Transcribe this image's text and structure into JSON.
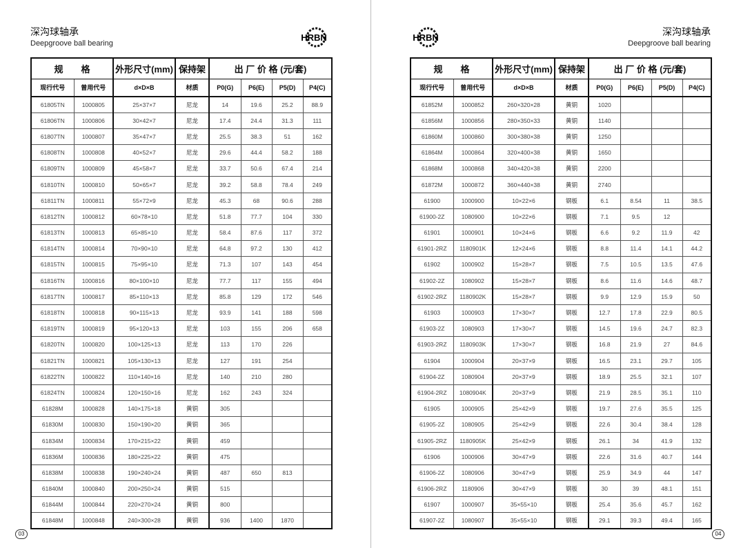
{
  "brand": "HRBN",
  "title_cn": "深沟球轴承",
  "title_en": "Deepgroove ball bearing",
  "header": {
    "spec": "规　　格",
    "dims": "外形尺寸(mm)",
    "cage": "保持架",
    "price": "出 厂 价 格 (元/套)",
    "code": "现行代号",
    "old_code": "曾用代号",
    "dxDxB": "d×D×B",
    "material": "材质",
    "p0": "P0(G)",
    "p6": "P6(E)",
    "p5": "P5(D)",
    "p4": "P4(C)"
  },
  "left": {
    "page_number": "03",
    "rows": [
      [
        "61805TN",
        "1000805",
        "25×37×7",
        "尼龙",
        "14",
        "19.6",
        "25.2",
        "88.9"
      ],
      [
        "61806TN",
        "1000806",
        "30×42×7",
        "尼龙",
        "17.4",
        "24.4",
        "31.3",
        "111"
      ],
      [
        "61807TN",
        "1000807",
        "35×47×7",
        "尼龙",
        "25.5",
        "38.3",
        "51",
        "162"
      ],
      [
        "61808TN",
        "1000808",
        "40×52×7",
        "尼龙",
        "29.6",
        "44.4",
        "58.2",
        "188"
      ],
      [
        "61809TN",
        "1000809",
        "45×58×7",
        "尼龙",
        "33.7",
        "50.6",
        "67.4",
        "214"
      ],
      [
        "61810TN",
        "1000810",
        "50×65×7",
        "尼龙",
        "39.2",
        "58.8",
        "78.4",
        "249"
      ],
      [
        "61811TN",
        "1000811",
        "55×72×9",
        "尼龙",
        "45.3",
        "68",
        "90.6",
        "288"
      ],
      [
        "61812TN",
        "1000812",
        "60×78×10",
        "尼龙",
        "51.8",
        "77.7",
        "104",
        "330"
      ],
      [
        "61813TN",
        "1000813",
        "65×85×10",
        "尼龙",
        "58.4",
        "87.6",
        "117",
        "372"
      ],
      [
        "61814TN",
        "1000814",
        "70×90×10",
        "尼龙",
        "64.8",
        "97.2",
        "130",
        "412"
      ],
      [
        "61815TN",
        "1000815",
        "75×95×10",
        "尼龙",
        "71.3",
        "107",
        "143",
        "454"
      ],
      [
        "61816TN",
        "1000816",
        "80×100×10",
        "尼龙",
        "77.7",
        "117",
        "155",
        "494"
      ],
      [
        "61817TN",
        "1000817",
        "85×110×13",
        "尼龙",
        "85.8",
        "129",
        "172",
        "546"
      ],
      [
        "61818TN",
        "1000818",
        "90×115×13",
        "尼龙",
        "93.9",
        "141",
        "188",
        "598"
      ],
      [
        "61819TN",
        "1000819",
        "95×120×13",
        "尼龙",
        "103",
        "155",
        "206",
        "658"
      ],
      [
        "61820TN",
        "1000820",
        "100×125×13",
        "尼龙",
        "113",
        "170",
        "226",
        ""
      ],
      [
        "61821TN",
        "1000821",
        "105×130×13",
        "尼龙",
        "127",
        "191",
        "254",
        ""
      ],
      [
        "61822TN",
        "1000822",
        "110×140×16",
        "尼龙",
        "140",
        "210",
        "280",
        ""
      ],
      [
        "61824TN",
        "1000824",
        "120×150×16",
        "尼龙",
        "162",
        "243",
        "324",
        ""
      ],
      [
        "61828M",
        "1000828",
        "140×175×18",
        "黄铜",
        "305",
        "",
        "",
        ""
      ],
      [
        "61830M",
        "1000830",
        "150×190×20",
        "黄铜",
        "365",
        "",
        "",
        ""
      ],
      [
        "61834M",
        "1000834",
        "170×215×22",
        "黄铜",
        "459",
        "",
        "",
        ""
      ],
      [
        "61836M",
        "1000836",
        "180×225×22",
        "黄铜",
        "475",
        "",
        "",
        ""
      ],
      [
        "61838M",
        "1000838",
        "190×240×24",
        "黄铜",
        "487",
        "650",
        "813",
        ""
      ],
      [
        "61840M",
        "1000840",
        "200×250×24",
        "黄铜",
        "515",
        "",
        "",
        ""
      ],
      [
        "61844M",
        "1000844",
        "220×270×24",
        "黄铜",
        "800",
        "",
        "",
        ""
      ],
      [
        "61848M",
        "1000848",
        "240×300×28",
        "黄铜",
        "936",
        "1400",
        "1870",
        ""
      ]
    ]
  },
  "right": {
    "page_number": "04",
    "rows": [
      [
        "61852M",
        "1000852",
        "260×320×28",
        "黄铜",
        "1020",
        "",
        "",
        ""
      ],
      [
        "61856M",
        "1000856",
        "280×350×33",
        "黄铜",
        "1140",
        "",
        "",
        ""
      ],
      [
        "61860M",
        "1000860",
        "300×380×38",
        "黄铜",
        "1250",
        "",
        "",
        ""
      ],
      [
        "61864M",
        "1000864",
        "320×400×38",
        "黄铜",
        "1650",
        "",
        "",
        ""
      ],
      [
        "61868M",
        "1000868",
        "340×420×38",
        "黄铜",
        "2200",
        "",
        "",
        ""
      ],
      [
        "61872M",
        "1000872",
        "360×440×38",
        "黄铜",
        "2740",
        "",
        "",
        ""
      ],
      [
        "61900",
        "1000900",
        "10×22×6",
        "钢板",
        "6.1",
        "8.54",
        "11",
        "38.5"
      ],
      [
        "61900-2Z",
        "1080900",
        "10×22×6",
        "钢板",
        "7.1",
        "9.5",
        "12",
        ""
      ],
      [
        "61901",
        "1000901",
        "10×24×6",
        "钢板",
        "6.6",
        "9.2",
        "11.9",
        "42"
      ],
      [
        "61901-2RZ",
        "1180901K",
        "12×24×6",
        "钢板",
        "8.8",
        "11.4",
        "14.1",
        "44.2"
      ],
      [
        "61902",
        "1000902",
        "15×28×7",
        "钢板",
        "7.5",
        "10.5",
        "13.5",
        "47.6"
      ],
      [
        "61902-2Z",
        "1080902",
        "15×28×7",
        "钢板",
        "8.6",
        "11.6",
        "14.6",
        "48.7"
      ],
      [
        "61902-2RZ",
        "1180902K",
        "15×28×7",
        "钢板",
        "9.9",
        "12.9",
        "15.9",
        "50"
      ],
      [
        "61903",
        "1000903",
        "17×30×7",
        "钢板",
        "12.7",
        "17.8",
        "22.9",
        "80.5"
      ],
      [
        "61903-2Z",
        "1080903",
        "17×30×7",
        "钢板",
        "14.5",
        "19.6",
        "24.7",
        "82.3"
      ],
      [
        "61903-2RZ",
        "1180903K",
        "17×30×7",
        "钢板",
        "16.8",
        "21.9",
        "27",
        "84.6"
      ],
      [
        "61904",
        "1000904",
        "20×37×9",
        "钢板",
        "16.5",
        "23.1",
        "29.7",
        "105"
      ],
      [
        "61904-2Z",
        "1080904",
        "20×37×9",
        "钢板",
        "18.9",
        "25.5",
        "32.1",
        "107"
      ],
      [
        "61904-2RZ",
        "1080904K",
        "20×37×9",
        "钢板",
        "21.9",
        "28.5",
        "35.1",
        "110"
      ],
      [
        "61905",
        "1000905",
        "25×42×9",
        "钢板",
        "19.7",
        "27.6",
        "35.5",
        "125"
      ],
      [
        "61905-2Z",
        "1080905",
        "25×42×9",
        "钢板",
        "22.6",
        "30.4",
        "38.4",
        "128"
      ],
      [
        "61905-2RZ",
        "1180905K",
        "25×42×9",
        "钢板",
        "26.1",
        "34",
        "41.9",
        "132"
      ],
      [
        "61906",
        "1000906",
        "30×47×9",
        "钢板",
        "22.6",
        "31.6",
        "40.7",
        "144"
      ],
      [
        "61906-2Z",
        "1080906",
        "30×47×9",
        "钢板",
        "25.9",
        "34.9",
        "44",
        "147"
      ],
      [
        "61906-2RZ",
        "1180906",
        "30×47×9",
        "钢板",
        "30",
        "39",
        "48.1",
        "151"
      ],
      [
        "61907",
        "1000907",
        "35×55×10",
        "钢板",
        "25.4",
        "35.6",
        "45.7",
        "162"
      ],
      [
        "61907-2Z",
        "1080907",
        "35×55×10",
        "钢板",
        "29.1",
        "39.3",
        "49.4",
        "165"
      ]
    ]
  }
}
